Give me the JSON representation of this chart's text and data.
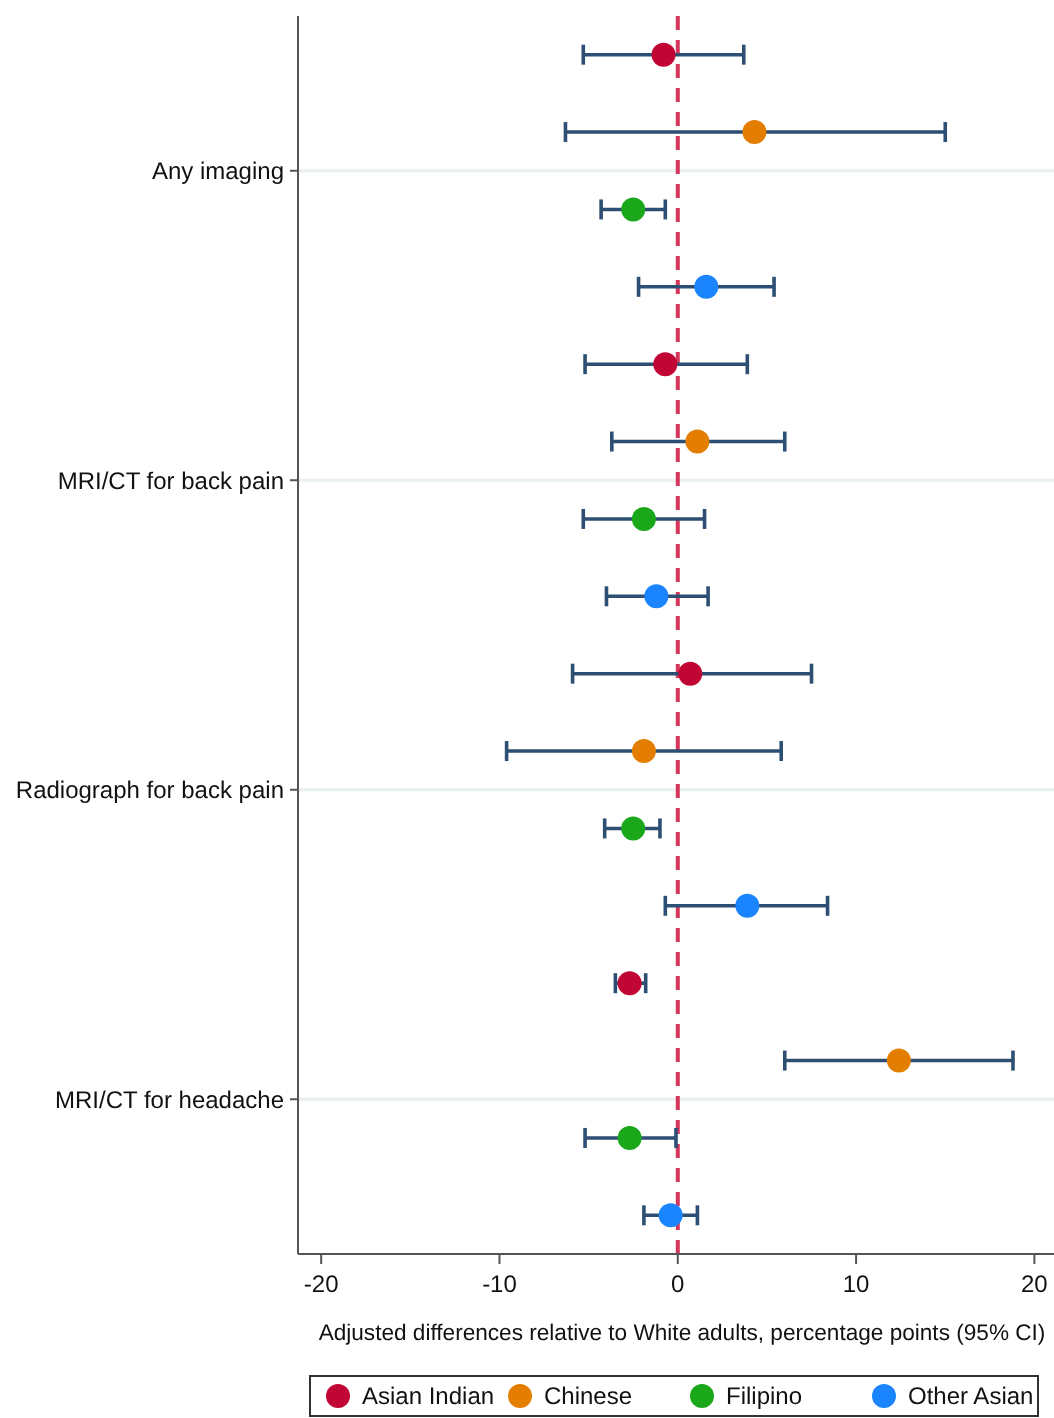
{
  "chart_data": {
    "type": "scatter",
    "orientation": "horizontal",
    "categories": [
      "Any imaging",
      "MRI/CT for back pain",
      "Radiograph for back pain",
      "MRI/CT for headache"
    ],
    "xlabel": "Adjusted differences relative to White adults, percentage points (95% CI)",
    "xlim": [
      -21.3,
      21.1
    ],
    "xticks": [
      -20,
      -10,
      0,
      10,
      20
    ],
    "series": [
      {
        "name": "Asian Indian",
        "color": "#c10534",
        "values": [
          -0.8,
          -0.7,
          0.7,
          -2.7
        ],
        "errors": [
          [
            -5.3,
            3.7
          ],
          [
            -5.2,
            3.9
          ],
          [
            -5.9,
            7.5
          ],
          [
            -3.5,
            -1.8
          ]
        ]
      },
      {
        "name": "Chinese",
        "color": "#e37e00",
        "values": [
          4.3,
          1.1,
          -1.9,
          12.4
        ],
        "errors": [
          [
            -6.3,
            15.0
          ],
          [
            -3.7,
            6.0
          ],
          [
            -9.6,
            5.8
          ],
          [
            6.0,
            18.8
          ]
        ]
      },
      {
        "name": "Filipino",
        "color": "#1aa81a",
        "values": [
          -2.5,
          -1.9,
          -2.5,
          -2.7
        ],
        "errors": [
          [
            -4.3,
            -0.7
          ],
          [
            -5.3,
            1.5
          ],
          [
            -4.1,
            -1.0
          ],
          [
            -5.2,
            -0.1
          ]
        ]
      },
      {
        "name": "Other Asian",
        "color": "#1a85ff",
        "values": [
          1.6,
          -1.2,
          3.9,
          -0.4
        ],
        "errors": [
          [
            -2.2,
            5.4
          ],
          [
            -4.0,
            1.7
          ],
          [
            -0.7,
            8.4
          ],
          [
            -1.9,
            1.1
          ]
        ]
      }
    ],
    "ref_lines": [
      {
        "axis": "x",
        "value": 0,
        "label": null,
        "color": "#d6365c",
        "line_style": "dashed"
      }
    ],
    "grid": "y",
    "legend": "bottom",
    "marker": "circle"
  }
}
